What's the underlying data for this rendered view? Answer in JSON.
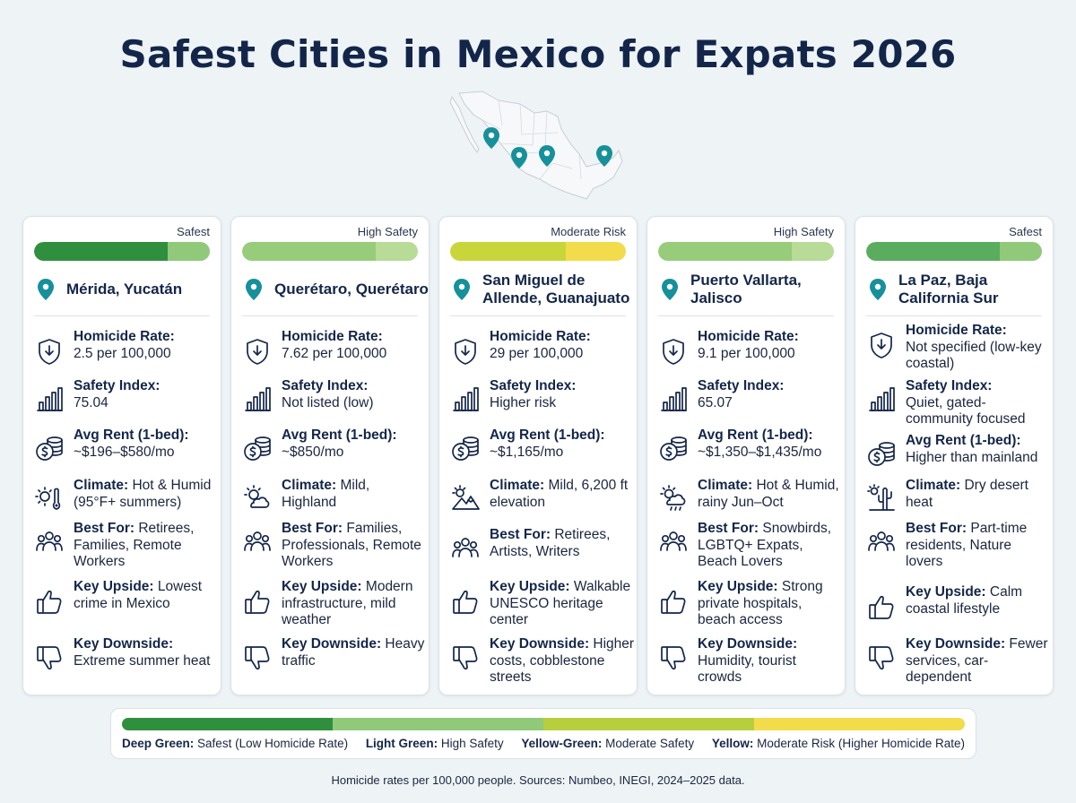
{
  "title": "Safest Cities in Mexico for Expats 2026",
  "colors": {
    "deep_green": "#2f8f3e",
    "light_green": "#90c97a",
    "yellow_green": "#b7cf3c",
    "yellow": "#f3dc4b",
    "pin": "#16909a"
  },
  "map": {
    "pins": [
      "map-pin",
      "map-pin",
      "map-pin",
      "map-pin"
    ]
  },
  "labels": {
    "homicide": "Homicide Rate:",
    "safety": "Safety Index:",
    "rent": "Avg Rent (1-bed):",
    "climate": "Climate:",
    "best": "Best For:",
    "upside": "Key Upside:",
    "downside": "Key Downside:"
  },
  "icons": {
    "homicide": "shield-down-icon",
    "safety": "bar-chart-icon",
    "rent": "coins-icon",
    "best": "people-icon",
    "upside": "thumbs-up-icon",
    "downside": "thumbs-down-icon"
  },
  "cities": [
    {
      "rating": "Safest",
      "bar_colors": [
        "#2f8f3e",
        "#90c97a"
      ],
      "bar_fill": 0.76,
      "name": "Mérida, Yucatán",
      "homicide": "2.5 per 100,000",
      "safety": "75.04",
      "rent": "~$196–$580/mo",
      "climate": "Hot & Humid (95°F+ summers)",
      "climate_icon": "sun-thermometer-icon",
      "best": "Retirees, Families, Remote Workers",
      "upside": "Lowest crime in Mexico",
      "downside": "Extreme summer heat"
    },
    {
      "rating": "High Safety",
      "bar_colors": [
        "#97cc7a",
        "#b8db98"
      ],
      "bar_fill": 0.76,
      "name": "Querétaro, Querétaro",
      "homicide": "7.62 per 100,000",
      "safety": "Not listed (low)",
      "rent": "~$850/mo",
      "climate": "Mild, Highland",
      "climate_icon": "sun-cloud-icon",
      "best": "Families, Professionals, Remote Workers",
      "upside": "Modern infrastructure, mild weather",
      "downside": "Heavy traffic"
    },
    {
      "rating": "Moderate Risk",
      "bar_colors": [
        "#c8d63a",
        "#f3dc4b"
      ],
      "bar_fill": 0.66,
      "name": "San Miguel de Allende, Guanajuato",
      "homicide": "29 per 100,000",
      "safety": "Higher risk",
      "rent": "~$1,165/mo",
      "climate": "Mild, 6,200 ft elevation",
      "climate_icon": "sun-mountain-icon",
      "best": "Retirees, Artists, Writers",
      "upside": "Walkable UNESCO heritage center",
      "downside": "Higher costs, cobblestone streets"
    },
    {
      "rating": "High Safety",
      "bar_colors": [
        "#97cc7a",
        "#b8db98"
      ],
      "bar_fill": 0.76,
      "name": "Puerto Vallarta, Jalisco",
      "homicide": "9.1 per 100,000",
      "safety": "65.07",
      "rent": "~$1,350–$1,435/mo",
      "climate": "Hot & Humid, rainy Jun–Oct",
      "climate_icon": "sun-rain-cloud-icon",
      "best": "Snowbirds, LGBTQ+ Expats, Beach Lovers",
      "upside": "Strong private hospitals, beach access",
      "downside": "Humidity, tourist crowds"
    },
    {
      "rating": "Safest",
      "bar_colors": [
        "#5aad5e",
        "#90c97a"
      ],
      "bar_fill": 0.76,
      "name": "La Paz, Baja California Sur",
      "homicide": "Not specified (low-key coastal)",
      "safety": "Quiet, gated-community focused",
      "rent": "Higher than mainland",
      "climate": "Dry desert heat",
      "climate_icon": "sun-cactus-icon",
      "best": "Part-time residents, Nature lovers",
      "upside": "Calm coastal lifestyle",
      "downside": "Fewer services, car-dependent"
    }
  ],
  "legend": [
    {
      "term": "Deep Green:",
      "desc": "Safest (Low Homicide Rate)",
      "color": "#2f8f3e"
    },
    {
      "term": "Light Green:",
      "desc": "High Safety",
      "color": "#90c97a"
    },
    {
      "term": "Yellow-Green:",
      "desc": "Moderate Safety",
      "color": "#b7cf3c"
    },
    {
      "term": "Yellow:",
      "desc": "Moderate Risk (Higher Homicide Rate)",
      "color": "#f3dc4b"
    }
  ],
  "footer": "Homicide rates per 100,000 people. Sources: Numbeo, INEGI, 2024–2025 data."
}
